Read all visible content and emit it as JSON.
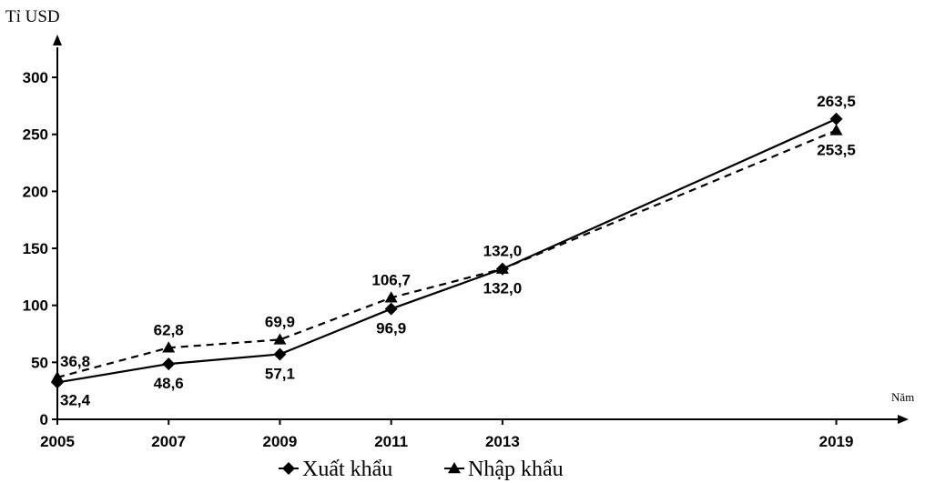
{
  "chart_data": {
    "type": "line",
    "ylabel": "Tỉ USD",
    "xlabel": "Năm",
    "x": [
      2005,
      2007,
      2009,
      2011,
      2013,
      2019
    ],
    "x_tick_labels": [
      "2005",
      "2007",
      "2009",
      "2011",
      "2013",
      "2019"
    ],
    "yticks": [
      0,
      50,
      100,
      150,
      200,
      250,
      300
    ],
    "ylim": [
      0,
      320
    ],
    "xlim": [
      2005,
      2020.3
    ],
    "series": [
      {
        "name": "Xuất khẩu",
        "values": [
          32.4,
          48.6,
          57.1,
          96.9,
          132.0,
          263.5
        ],
        "labels": [
          "32,4",
          "48,6",
          "57,1",
          "96,9",
          "132,0",
          "263,5"
        ],
        "label_pos": [
          "below",
          "below",
          "below",
          "below",
          "below",
          "above"
        ],
        "marker": "diamond",
        "line": "solid",
        "color": "#000000"
      },
      {
        "name": "Nhập khẩu",
        "values": [
          36.8,
          62.8,
          69.9,
          106.7,
          132.0,
          253.5
        ],
        "labels": [
          "36,8",
          "62,8",
          "69,9",
          "106,7",
          "132,0",
          "253,5"
        ],
        "label_pos": [
          "above",
          "above",
          "above",
          "above",
          "above",
          "below"
        ],
        "marker": "triangle",
        "line": "dashed",
        "color": "#000000"
      }
    ],
    "legend_position": "bottom-center",
    "grid": false
  }
}
